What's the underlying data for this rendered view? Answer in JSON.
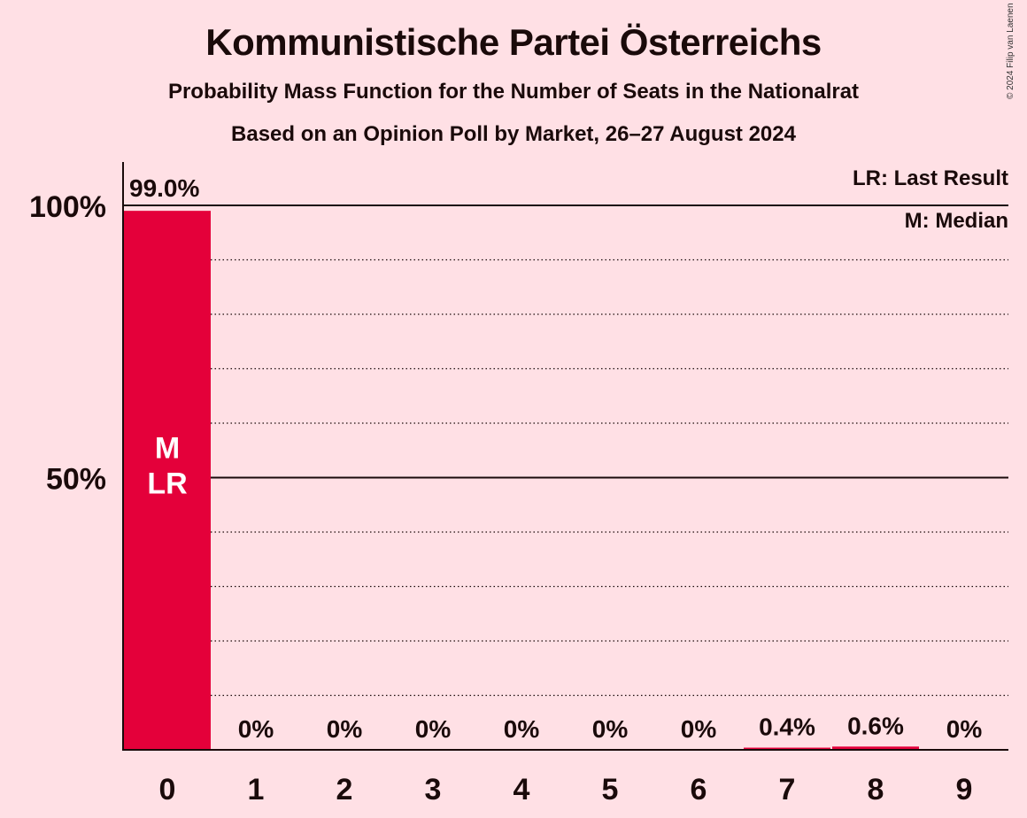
{
  "header": {
    "title": "Kommunistische Partei Österreichs",
    "subtitle1": "Probability Mass Function for the Number of Seats in the Nationalrat",
    "subtitle2": "Based on an Opinion Poll by Market, 26–27 August 2024",
    "copyright": "© 2024 Filip van Laenen"
  },
  "legend": {
    "last_result": "LR: Last Result",
    "median": "M: Median"
  },
  "chart_data": {
    "type": "bar",
    "title": "Kommunistische Partei Österreichs",
    "categories": [
      "0",
      "1",
      "2",
      "3",
      "4",
      "5",
      "6",
      "7",
      "8",
      "9"
    ],
    "values": [
      99.0,
      0,
      0,
      0,
      0,
      0,
      0,
      0.4,
      0.6,
      0
    ],
    "value_labels": [
      "99.0%",
      "0%",
      "0%",
      "0%",
      "0%",
      "0%",
      "0%",
      "0.4%",
      "0.6%",
      "0%"
    ],
    "ylim": [
      0,
      100
    ],
    "yticks": [
      {
        "value": 50,
        "label": "50%"
      },
      {
        "value": 100,
        "label": "100%"
      }
    ],
    "grid": "dotted every 10%",
    "bar_color": "#e4003a",
    "median_seat": "0",
    "last_result_seat": "0",
    "bar_marker_lines": [
      "M",
      "LR"
    ],
    "legend_placement": "top-right"
  }
}
